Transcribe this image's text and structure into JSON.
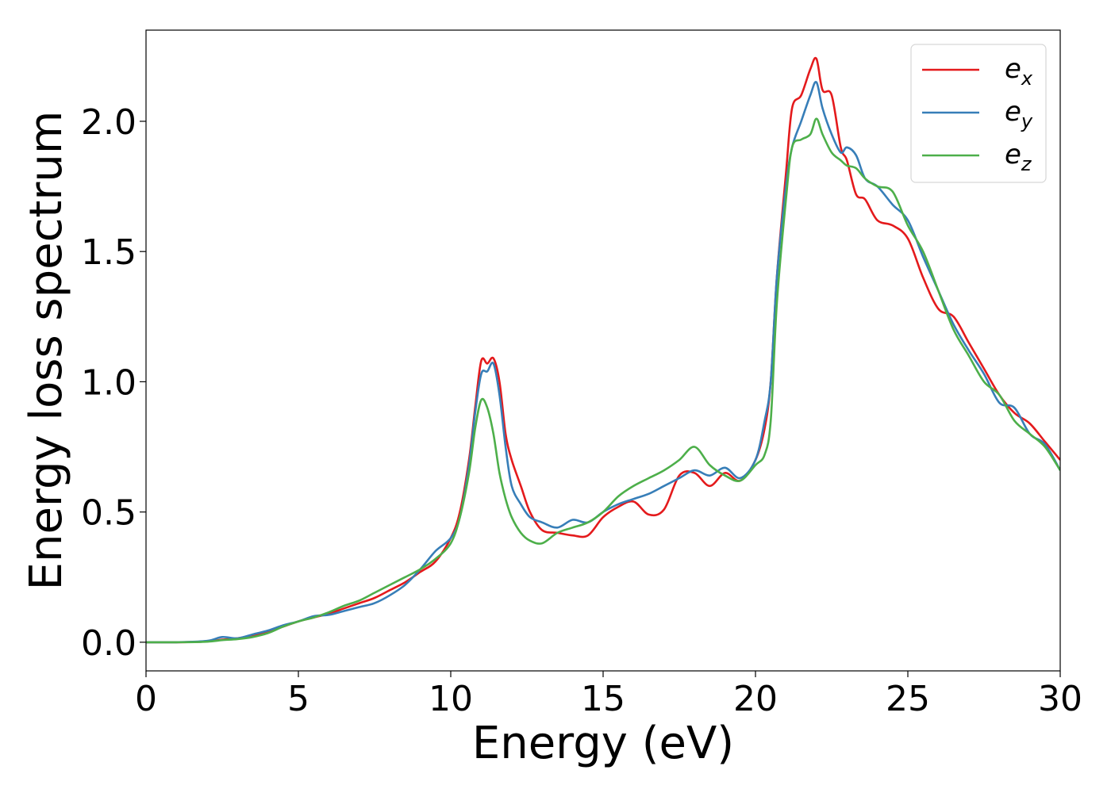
{
  "chart_data": {
    "type": "line",
    "xlabel": "Energy (eV)",
    "ylabel": "Energy loss spectrum",
    "xlim": [
      0,
      30
    ],
    "ylim": [
      -0.11,
      2.35
    ],
    "xticks": [
      "0",
      "5",
      "10",
      "15",
      "20",
      "25",
      "30"
    ],
    "xtick_values": [
      0,
      5,
      10,
      15,
      20,
      25,
      30
    ],
    "yticks": [
      "0.0",
      "0.5",
      "1.0",
      "1.5",
      "2.0"
    ],
    "ytick_values": [
      0,
      0.5,
      1.0,
      1.5,
      2.0
    ],
    "grid": false,
    "legend_position": "top-right",
    "series": [
      {
        "name": "e_x",
        "legend_base": "e",
        "legend_sub": "x",
        "color": "#e41a1c",
        "x": [
          0,
          1,
          2,
          2.5,
          3,
          3.5,
          4,
          4.5,
          5,
          5.5,
          6,
          6.5,
          7,
          7.5,
          8,
          8.5,
          9,
          9.5,
          10,
          10.3,
          10.6,
          10.8,
          11,
          11.2,
          11.4,
          11.6,
          11.8,
          12,
          12.3,
          12.6,
          13,
          13.5,
          14,
          14.5,
          15,
          15.5,
          16,
          16.5,
          17,
          17.5,
          18,
          18.5,
          19,
          19.5,
          20,
          20.3,
          20.5,
          20.7,
          21,
          21.2,
          21.5,
          21.8,
          22,
          22.2,
          22.5,
          22.8,
          23,
          23.3,
          23.6,
          24,
          24.5,
          25,
          25.5,
          26,
          26.5,
          27,
          27.5,
          28,
          28.5,
          29,
          29.5,
          30
        ],
        "y": [
          0,
          0,
          0.003,
          0.01,
          0.015,
          0.025,
          0.04,
          0.06,
          0.08,
          0.095,
          0.11,
          0.13,
          0.15,
          0.17,
          0.2,
          0.23,
          0.27,
          0.31,
          0.4,
          0.5,
          0.7,
          0.9,
          1.08,
          1.07,
          1.09,
          1.0,
          0.8,
          0.7,
          0.6,
          0.5,
          0.43,
          0.42,
          0.41,
          0.41,
          0.48,
          0.52,
          0.54,
          0.49,
          0.51,
          0.64,
          0.65,
          0.6,
          0.65,
          0.62,
          0.7,
          0.82,
          1.0,
          1.4,
          1.8,
          2.05,
          2.1,
          2.2,
          2.24,
          2.12,
          2.1,
          1.9,
          1.85,
          1.72,
          1.7,
          1.62,
          1.6,
          1.55,
          1.4,
          1.28,
          1.25,
          1.15,
          1.05,
          0.95,
          0.88,
          0.84,
          0.77,
          0.7
        ]
      },
      {
        "name": "e_y",
        "legend_base": "e",
        "legend_sub": "y",
        "color": "#377eb8",
        "x": [
          0,
          1,
          2,
          2.5,
          3,
          3.5,
          4,
          4.5,
          5,
          5.5,
          6,
          6.5,
          7,
          7.5,
          8,
          8.5,
          9,
          9.5,
          10,
          10.3,
          10.6,
          10.8,
          11,
          11.2,
          11.4,
          11.6,
          11.8,
          12,
          12.3,
          12.6,
          13,
          13.5,
          14,
          14.5,
          15,
          15.5,
          16,
          16.5,
          17,
          17.5,
          18,
          18.5,
          19,
          19.5,
          20,
          20.3,
          20.5,
          20.7,
          21,
          21.2,
          21.5,
          21.8,
          22,
          22.2,
          22.5,
          22.8,
          23,
          23.3,
          23.6,
          24,
          24.5,
          25,
          25.5,
          26,
          26.5,
          27,
          27.5,
          28,
          28.5,
          29,
          29.5,
          30
        ],
        "y": [
          0,
          0,
          0.005,
          0.02,
          0.015,
          0.03,
          0.045,
          0.065,
          0.08,
          0.1,
          0.105,
          0.12,
          0.135,
          0.15,
          0.18,
          0.22,
          0.28,
          0.35,
          0.4,
          0.48,
          0.68,
          0.88,
          1.03,
          1.04,
          1.07,
          0.95,
          0.75,
          0.6,
          0.53,
          0.48,
          0.46,
          0.44,
          0.47,
          0.46,
          0.5,
          0.53,
          0.55,
          0.57,
          0.6,
          0.63,
          0.66,
          0.64,
          0.67,
          0.63,
          0.7,
          0.85,
          1.0,
          1.4,
          1.75,
          1.9,
          2.0,
          2.1,
          2.15,
          2.05,
          1.95,
          1.88,
          1.9,
          1.87,
          1.78,
          1.75,
          1.68,
          1.62,
          1.48,
          1.35,
          1.22,
          1.12,
          1.03,
          0.92,
          0.9,
          0.8,
          0.76,
          0.66
        ]
      },
      {
        "name": "e_z",
        "legend_base": "e",
        "legend_sub": "z",
        "color": "#4daf4a",
        "x": [
          0,
          1,
          2,
          2.5,
          3,
          3.5,
          4,
          4.5,
          5,
          5.5,
          6,
          6.5,
          7,
          7.5,
          8,
          8.5,
          9,
          9.5,
          10,
          10.3,
          10.6,
          10.8,
          11,
          11.2,
          11.4,
          11.6,
          11.8,
          12,
          12.3,
          12.6,
          13,
          13.5,
          14,
          14.5,
          15,
          15.5,
          16,
          16.5,
          17,
          17.5,
          18,
          18.5,
          19,
          19.5,
          20,
          20.3,
          20.5,
          20.7,
          21,
          21.2,
          21.5,
          21.8,
          22,
          22.2,
          22.5,
          22.8,
          23,
          23.3,
          23.6,
          24,
          24.5,
          25,
          25.5,
          26,
          26.5,
          27,
          27.5,
          28,
          28.5,
          29,
          29.5,
          30
        ],
        "y": [
          0,
          0,
          0.002,
          0.008,
          0.012,
          0.02,
          0.035,
          0.06,
          0.08,
          0.095,
          0.115,
          0.14,
          0.16,
          0.19,
          0.22,
          0.25,
          0.28,
          0.32,
          0.38,
          0.48,
          0.65,
          0.82,
          0.93,
          0.9,
          0.8,
          0.65,
          0.55,
          0.48,
          0.42,
          0.39,
          0.38,
          0.42,
          0.44,
          0.46,
          0.5,
          0.56,
          0.6,
          0.63,
          0.66,
          0.7,
          0.75,
          0.68,
          0.64,
          0.62,
          0.68,
          0.72,
          0.85,
          1.3,
          1.7,
          1.9,
          1.93,
          1.95,
          2.01,
          1.95,
          1.88,
          1.85,
          1.83,
          1.82,
          1.78,
          1.75,
          1.73,
          1.6,
          1.5,
          1.35,
          1.2,
          1.1,
          1.0,
          0.95,
          0.85,
          0.8,
          0.75,
          0.66
        ]
      }
    ]
  }
}
